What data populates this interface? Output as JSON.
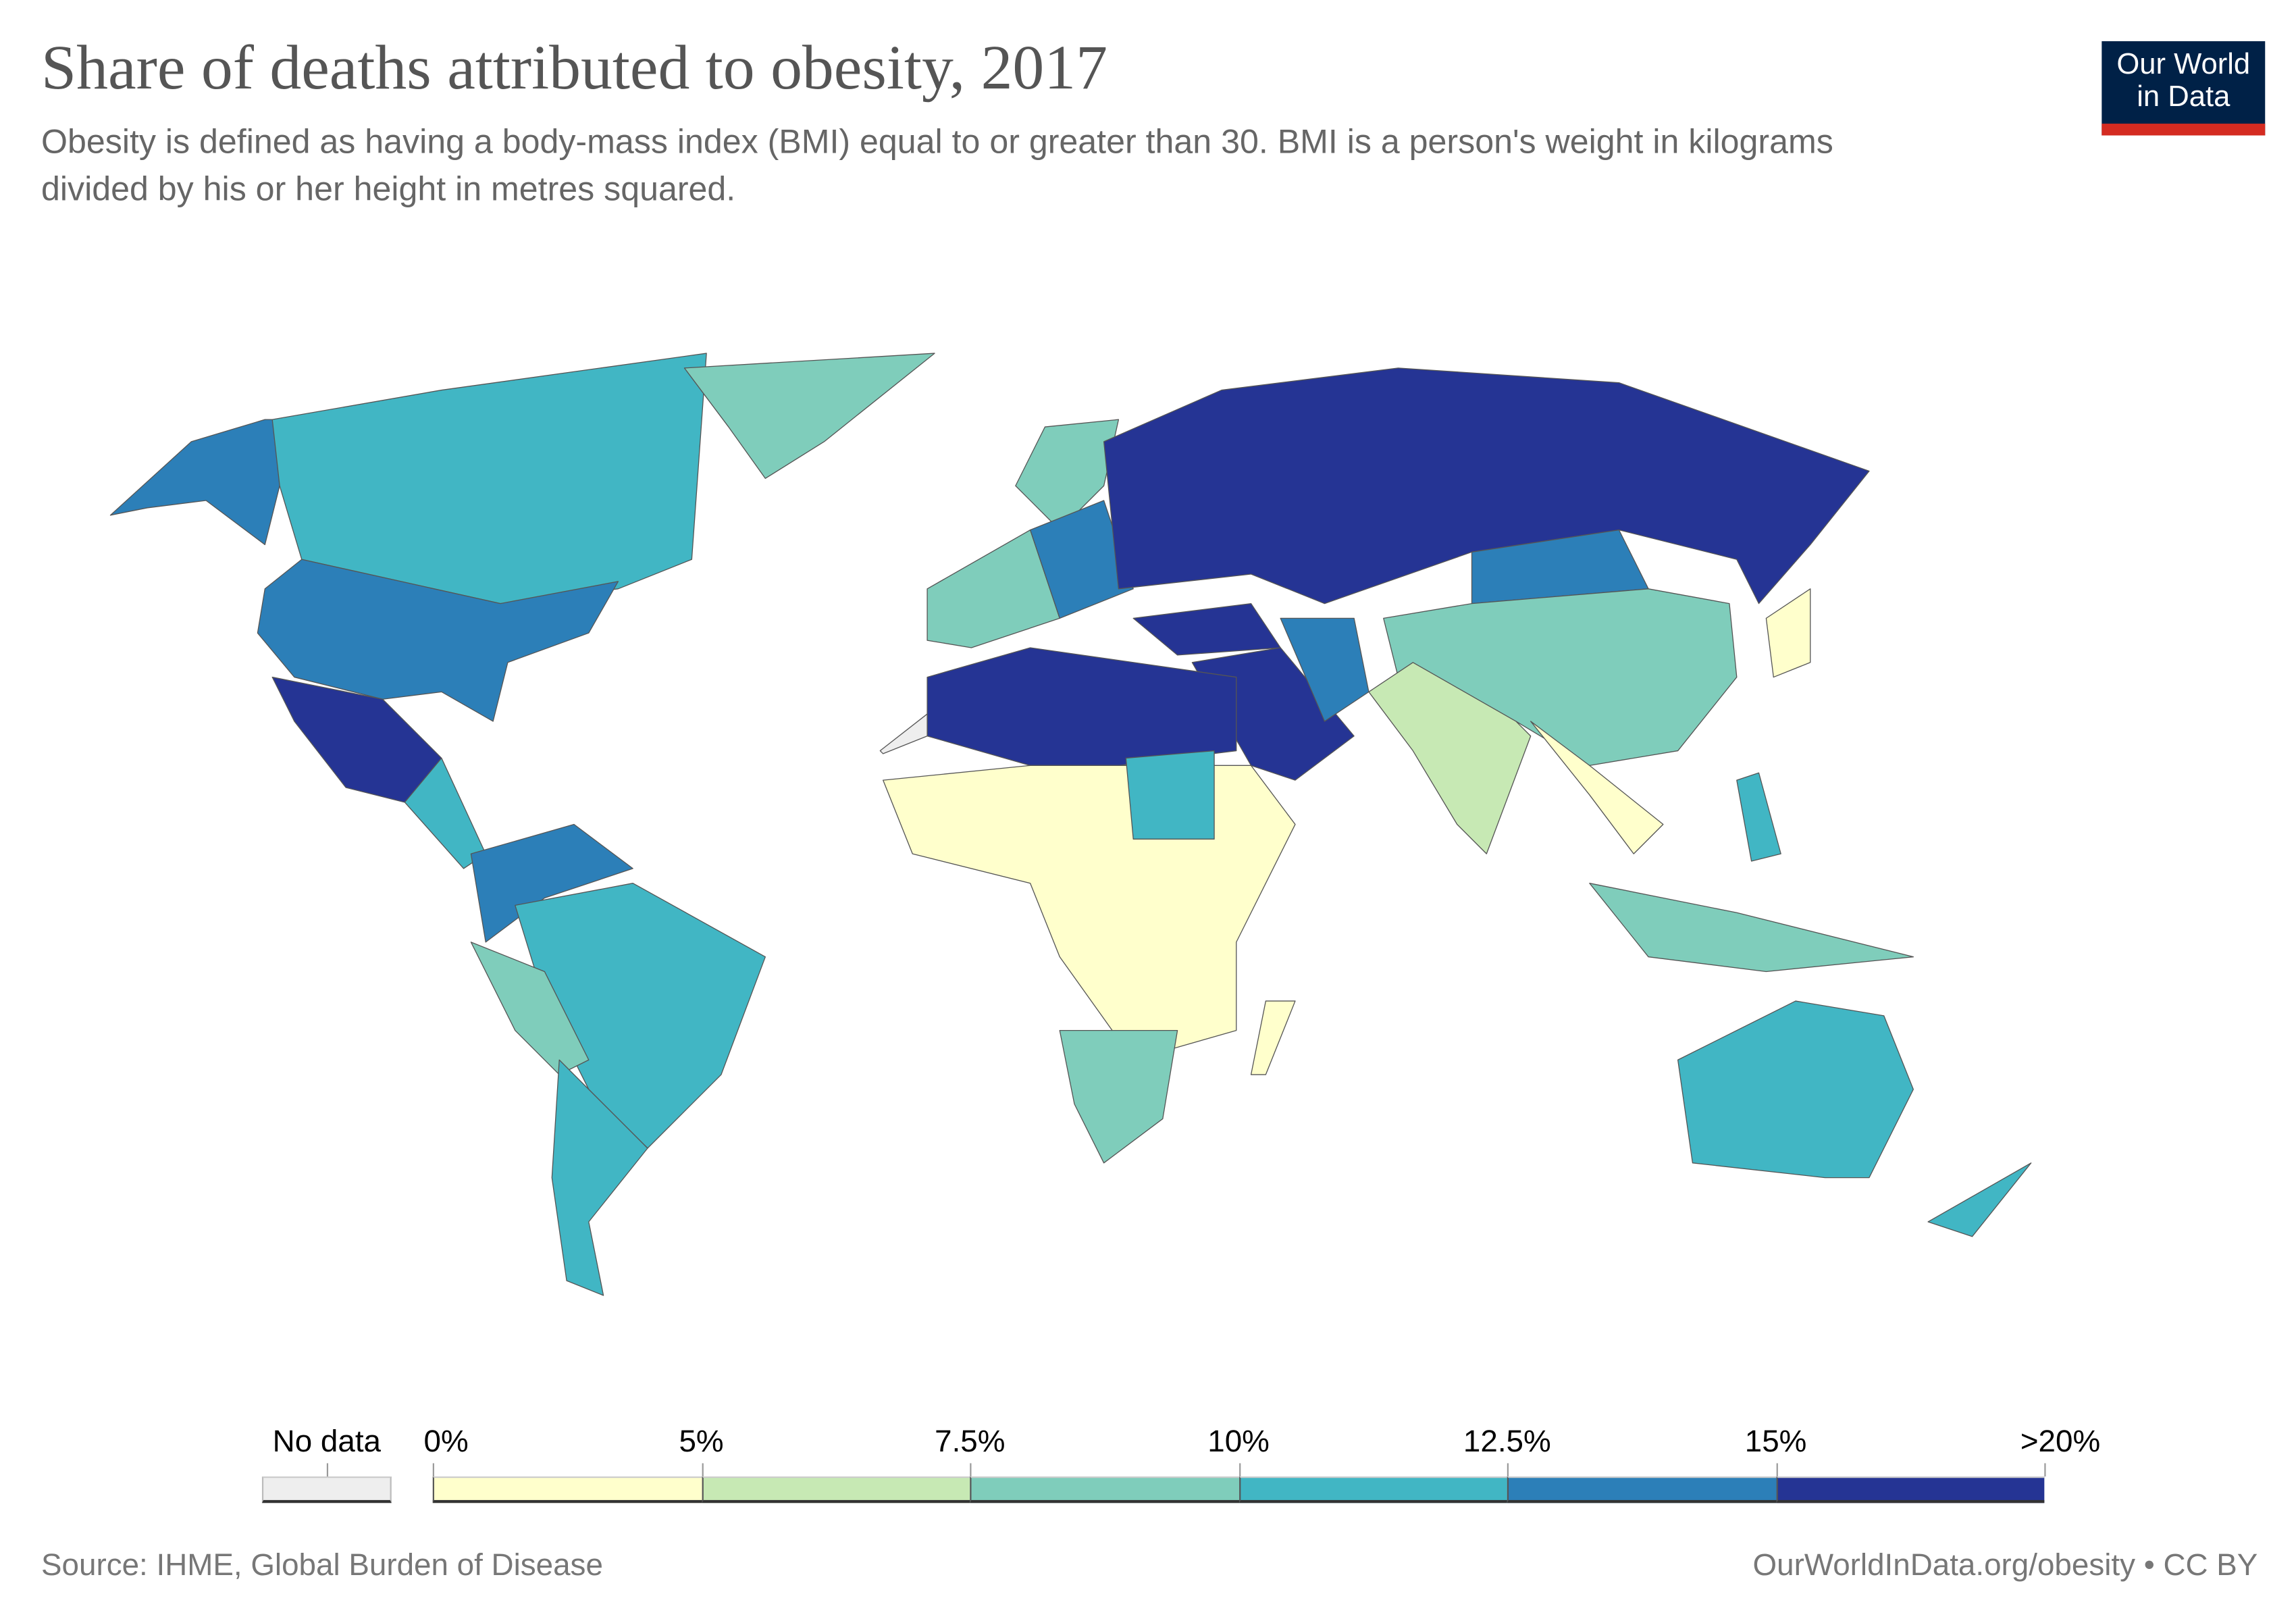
{
  "header": {
    "title": "Share of deaths attributed to obesity, 2017",
    "subtitle": "Obesity is defined as having a body-mass index (BMI) equal to or greater than 30. BMI is a person's weight in kilograms\n divided by his or her height in metres squared."
  },
  "logo": {
    "line1": "Our World",
    "line2": "in Data",
    "bg": "#002147",
    "accent": "#d42b21"
  },
  "legend": {
    "no_data_label": "No data",
    "no_data_color": "#eeeeee",
    "ticks": [
      "0%",
      "5%",
      "7.5%",
      "10%",
      "12.5%",
      "15%",
      ">20%"
    ],
    "bins": [
      {
        "range": "0–5%",
        "color": "#ffffcc"
      },
      {
        "range": "5–7.5%",
        "color": "#c7e9b4"
      },
      {
        "range": "7.5–10%",
        "color": "#7fcdbb"
      },
      {
        "range": "10–12.5%",
        "color": "#41b6c4"
      },
      {
        "range": "12.5–15%",
        "color": "#2c7fb8"
      },
      {
        "range": "15–20%+",
        "color": "#253494"
      }
    ]
  },
  "map_regions": [
    {
      "name": "alaska",
      "bin": 4
    },
    {
      "name": "canada",
      "bin": 3
    },
    {
      "name": "greenland",
      "bin": 2
    },
    {
      "name": "united-states",
      "bin": 4
    },
    {
      "name": "mexico",
      "bin": 5
    },
    {
      "name": "central-america",
      "bin": 3
    },
    {
      "name": "venezuela-colombia",
      "bin": 4
    },
    {
      "name": "brazil",
      "bin": 3
    },
    {
      "name": "peru-bolivia",
      "bin": 2
    },
    {
      "name": "argentina-chile",
      "bin": 3
    },
    {
      "name": "scandinavia",
      "bin": 2
    },
    {
      "name": "western-europe",
      "bin": 2
    },
    {
      "name": "central-europe",
      "bin": 4
    },
    {
      "name": "russia",
      "bin": 5
    },
    {
      "name": "mongolia",
      "bin": 4
    },
    {
      "name": "china",
      "bin": 2
    },
    {
      "name": "india",
      "bin": 1
    },
    {
      "name": "southeast-asia",
      "bin": 0
    },
    {
      "name": "turkey-caucasus",
      "bin": 5
    },
    {
      "name": "arabia",
      "bin": 5
    },
    {
      "name": "iran",
      "bin": 4
    },
    {
      "name": "north-africa",
      "bin": 5
    },
    {
      "name": "sub-saharan-africa",
      "bin": 0
    },
    {
      "name": "sudan",
      "bin": 3
    },
    {
      "name": "southern-africa",
      "bin": 2
    },
    {
      "name": "madagascar",
      "bin": 0
    },
    {
      "name": "japan",
      "bin": 0
    },
    {
      "name": "indonesia",
      "bin": 2
    },
    {
      "name": "philippines",
      "bin": 3
    },
    {
      "name": "australia",
      "bin": 3
    },
    {
      "name": "new-zealand",
      "bin": 3
    },
    {
      "name": "western-sahara",
      "bin": -1
    }
  ],
  "footer": {
    "source": "Source: IHME, Global Burden of Disease",
    "url": "OurWorldInData.org/obesity • CC BY"
  }
}
